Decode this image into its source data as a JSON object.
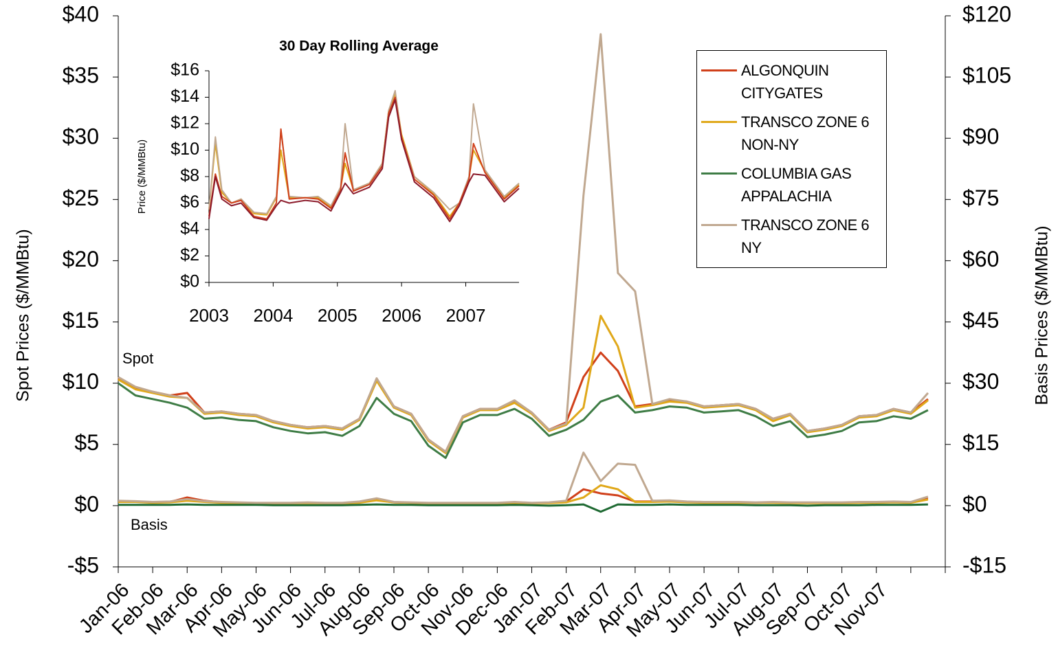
{
  "chart_data": [
    {
      "type": "line",
      "categories": [
        "Jan-06",
        null,
        "Feb-06",
        null,
        "Mar-06",
        null,
        "Apr-06",
        null,
        "May-06",
        null,
        "Jun-06",
        null,
        "Jul-06",
        null,
        "Aug-06",
        null,
        "Sep-06",
        null,
        "Oct-06",
        null,
        "Nov-06",
        null,
        "Dec-06",
        null,
        "Jan-07",
        null,
        "Feb-07",
        null,
        "Mar-07",
        null,
        "Apr-07",
        null,
        "May-07",
        null,
        "Jun-07",
        null,
        "Jul-07",
        null,
        "Aug-07",
        null,
        "Sep-07",
        null,
        "Oct-07",
        null,
        "Nov-07",
        null,
        null,
        null
      ],
      "ylabel": "Spot Prices ($/MMBtu)",
      "y2label": "Basis Prices ($/MMBtu)",
      "ylim": [
        -5,
        40
      ],
      "yticks": [
        {
          "value": -5,
          "label": "-$5"
        },
        {
          "value": 0,
          "label": "$0"
        },
        {
          "value": 5,
          "label": "$5"
        },
        {
          "value": 10,
          "label": "$10"
        },
        {
          "value": 15,
          "label": "$15"
        },
        {
          "value": 20,
          "label": "$20"
        },
        {
          "value": 25,
          "label": "$25"
        },
        {
          "value": 30,
          "label": "$30"
        },
        {
          "value": 35,
          "label": "$35"
        },
        {
          "value": 40,
          "label": "$40"
        }
      ],
      "y2lim": [
        -15,
        120
      ],
      "y2ticks": [
        {
          "value": -15,
          "label": "-$15"
        },
        {
          "value": 0,
          "label": "$0"
        },
        {
          "value": 15,
          "label": "$15"
        },
        {
          "value": 30,
          "label": "$30"
        },
        {
          "value": 45,
          "label": "$45"
        },
        {
          "value": 60,
          "label": "$60"
        },
        {
          "value": 75,
          "label": "$75"
        },
        {
          "value": 90,
          "label": "$90"
        },
        {
          "value": 105,
          "label": "$105"
        },
        {
          "value": 120,
          "label": "$120"
        }
      ],
      "annotations": [
        "Spot",
        "Basis"
      ],
      "legend": "upper right",
      "grid": false,
      "series": [
        {
          "name": "ALGONQUIN CITYGATES",
          "color": "#d0401a",
          "values": [
            10.4,
            9.6,
            9.3,
            9.0,
            9.2,
            7.6,
            7.7,
            7.5,
            7.4,
            6.9,
            6.6,
            6.4,
            6.5,
            6.3,
            7.1,
            10.3,
            8.1,
            7.5,
            5.4,
            4.4,
            7.3,
            7.9,
            7.9,
            8.5,
            7.6,
            6.2,
            6.8,
            10.5,
            12.5,
            11.0,
            8.1,
            8.3,
            8.6,
            8.5,
            8.1,
            8.2,
            8.3,
            7.9,
            7.1,
            7.5,
            6.1,
            6.3,
            6.6,
            7.3,
            7.4,
            7.9,
            7.6,
            8.7
          ]
        },
        {
          "name": "TRANSCO ZONE 6 NON-NY",
          "color": "#e0a81a",
          "values": [
            10.3,
            9.5,
            9.2,
            8.9,
            8.8,
            7.5,
            7.6,
            7.4,
            7.3,
            6.8,
            6.5,
            6.3,
            6.4,
            6.2,
            7.0,
            10.2,
            8.0,
            7.4,
            5.3,
            4.3,
            7.2,
            7.8,
            7.8,
            8.4,
            7.5,
            6.1,
            6.6,
            8.0,
            15.5,
            13.0,
            8.0,
            8.2,
            8.5,
            8.4,
            8.0,
            8.1,
            8.2,
            7.8,
            6.9,
            7.4,
            6.0,
            6.2,
            6.5,
            7.2,
            7.3,
            7.8,
            7.5,
            8.6
          ]
        },
        {
          "name": "COLUMBIA GAS APPALACHIA",
          "color": "#3e7c45",
          "values": [
            10.0,
            9.0,
            8.7,
            8.4,
            8.0,
            7.1,
            7.2,
            7.0,
            6.9,
            6.4,
            6.1,
            5.9,
            6.0,
            5.7,
            6.5,
            8.8,
            7.5,
            6.9,
            4.9,
            3.9,
            6.8,
            7.4,
            7.4,
            7.9,
            7.1,
            5.7,
            6.2,
            7.0,
            8.5,
            9.0,
            7.6,
            7.8,
            8.1,
            8.0,
            7.6,
            7.7,
            7.8,
            7.3,
            6.5,
            6.9,
            5.6,
            5.8,
            6.1,
            6.8,
            6.9,
            7.3,
            7.1,
            7.8
          ]
        },
        {
          "name": "TRANSCO ZONE 6 NY",
          "color": "#c0a890",
          "values": [
            10.5,
            9.7,
            9.3,
            9.0,
            8.8,
            7.6,
            7.7,
            7.5,
            7.4,
            6.9,
            6.6,
            6.4,
            6.5,
            6.3,
            7.1,
            10.4,
            8.1,
            7.5,
            5.4,
            4.4,
            7.3,
            7.9,
            7.9,
            8.6,
            7.6,
            6.2,
            6.7,
            25.3,
            38.5,
            19.0,
            17.5,
            8.3,
            8.7,
            8.5,
            8.1,
            8.2,
            8.3,
            7.9,
            7.1,
            7.5,
            6.1,
            6.3,
            6.6,
            7.3,
            7.4,
            7.9,
            7.6,
            9.2
          ]
        },
        {
          "axis": "y2",
          "color": "#d0401a",
          "values": [
            1.0,
            1.0,
            0.8,
            0.9,
            2.0,
            1.2,
            0.8,
            0.7,
            0.6,
            0.6,
            0.6,
            0.7,
            0.6,
            0.6,
            0.8,
            1.4,
            0.8,
            0.7,
            0.6,
            0.6,
            0.6,
            0.6,
            0.6,
            0.7,
            0.6,
            0.7,
            1.0,
            4.0,
            3.0,
            2.5,
            1.0,
            1.0,
            1.2,
            0.9,
            0.8,
            0.8,
            0.8,
            0.7,
            0.8,
            0.7,
            0.7,
            0.7,
            0.7,
            0.8,
            0.8,
            0.9,
            0.8,
            1.8
          ]
        },
        {
          "axis": "y2",
          "color": "#e0a81a",
          "values": [
            0.9,
            0.9,
            0.7,
            0.8,
            1.2,
            0.9,
            0.7,
            0.6,
            0.6,
            0.6,
            0.6,
            0.6,
            0.6,
            0.6,
            0.7,
            1.3,
            0.8,
            0.7,
            0.6,
            0.6,
            0.6,
            0.6,
            0.6,
            0.7,
            0.6,
            0.6,
            0.8,
            2.0,
            5.0,
            4.0,
            0.9,
            0.9,
            1.0,
            0.8,
            0.7,
            0.7,
            0.7,
            0.7,
            0.7,
            0.6,
            0.6,
            0.6,
            0.6,
            0.7,
            0.7,
            0.8,
            0.7,
            1.5
          ]
        },
        {
          "axis": "y2",
          "color": "#1f6a33",
          "values": [
            0.2,
            0.2,
            0.2,
            0.2,
            0.3,
            0.2,
            0.2,
            0.2,
            0.2,
            0.1,
            0.1,
            0.1,
            0.1,
            0.1,
            0.2,
            0.3,
            0.2,
            0.2,
            0.1,
            0.1,
            0.1,
            0.1,
            0.1,
            0.2,
            0.1,
            0.0,
            0.1,
            0.3,
            -1.5,
            0.3,
            0.2,
            0.2,
            0.3,
            0.2,
            0.2,
            0.2,
            0.2,
            0.1,
            0.1,
            0.1,
            0.0,
            0.1,
            0.1,
            0.1,
            0.2,
            0.2,
            0.2,
            0.3
          ]
        },
        {
          "axis": "y2",
          "color": "#c0a890",
          "values": [
            1.2,
            1.1,
            0.9,
            1.0,
            1.6,
            1.1,
            0.9,
            0.8,
            0.7,
            0.7,
            0.7,
            0.8,
            0.7,
            0.7,
            1.0,
            1.8,
            0.9,
            0.8,
            0.7,
            0.7,
            0.7,
            0.7,
            0.7,
            0.9,
            0.7,
            0.8,
            1.2,
            13.0,
            6.0,
            10.3,
            10.0,
            1.2,
            1.3,
            1.0,
            0.9,
            0.9,
            0.9,
            0.8,
            0.9,
            0.8,
            0.8,
            0.8,
            0.8,
            0.9,
            0.9,
            1.0,
            0.9,
            2.2
          ]
        }
      ]
    },
    {
      "type": "line",
      "title": "30 Day Rolling Average",
      "ylabel": "Price ($/MMBtu)",
      "x": [
        2003.0,
        2003.1,
        2003.2,
        2003.35,
        2003.5,
        2003.7,
        2003.9,
        2004.05,
        2004.12,
        2004.25,
        2004.5,
        2004.7,
        2004.9,
        2005.05,
        2005.12,
        2005.25,
        2005.5,
        2005.7,
        2005.8,
        2005.9,
        2006.0,
        2006.2,
        2006.5,
        2006.75,
        2006.9,
        2007.05,
        2007.12,
        2007.3,
        2007.6,
        2007.83
      ],
      "xlim": [
        2003,
        2007.83
      ],
      "xticks": [
        2003,
        2004,
        2005,
        2006,
        2007
      ],
      "ylim": [
        0,
        16
      ],
      "yticks": [
        {
          "value": 0,
          "label": "$0"
        },
        {
          "value": 2,
          "label": "$2"
        },
        {
          "value": 4,
          "label": "$4"
        },
        {
          "value": 6,
          "label": "$6"
        },
        {
          "value": 8,
          "label": "$8"
        },
        {
          "value": 10,
          "label": "$10"
        },
        {
          "value": 12,
          "label": "$12"
        },
        {
          "value": 14,
          "label": "$14"
        },
        {
          "value": 16,
          "label": "$16"
        }
      ],
      "series": [
        {
          "color": "#e0a81a",
          "values": [
            5.5,
            10.5,
            6.8,
            6.0,
            6.3,
            5.2,
            5.1,
            6.4,
            10.0,
            6.4,
            6.4,
            6.4,
            5.7,
            7.1,
            9.0,
            7.0,
            7.5,
            9.0,
            13.0,
            14.3,
            11.2,
            8.0,
            6.7,
            5.0,
            6.0,
            7.9,
            10.0,
            8.4,
            6.4,
            7.4
          ]
        },
        {
          "color": "#c0a890",
          "values": [
            5.5,
            11.0,
            7.0,
            6.0,
            6.3,
            5.3,
            5.2,
            6.5,
            11.5,
            6.5,
            6.4,
            6.5,
            5.8,
            7.2,
            12.0,
            7.0,
            7.5,
            9.0,
            13.0,
            14.5,
            11.0,
            8.0,
            6.8,
            5.5,
            6.0,
            8.0,
            13.5,
            8.5,
            6.5,
            7.5
          ]
        },
        {
          "color": "#d0401a",
          "values": [
            5.0,
            8.2,
            6.5,
            6.0,
            6.2,
            5.0,
            4.8,
            6.0,
            11.6,
            6.3,
            6.4,
            6.3,
            5.6,
            7.0,
            9.8,
            6.9,
            7.4,
            8.8,
            12.8,
            14.0,
            11.0,
            7.8,
            6.6,
            4.8,
            6.0,
            7.8,
            10.5,
            8.3,
            6.3,
            7.3
          ]
        },
        {
          "color": "#8b1a2a",
          "values": [
            4.8,
            8.0,
            6.3,
            5.8,
            6.0,
            4.9,
            4.7,
            5.8,
            6.2,
            6.0,
            6.2,
            6.1,
            5.4,
            6.8,
            7.5,
            6.7,
            7.2,
            8.6,
            12.5,
            13.8,
            10.8,
            7.6,
            6.4,
            4.6,
            5.8,
            7.6,
            8.2,
            8.1,
            6.1,
            7.1
          ]
        }
      ]
    }
  ]
}
